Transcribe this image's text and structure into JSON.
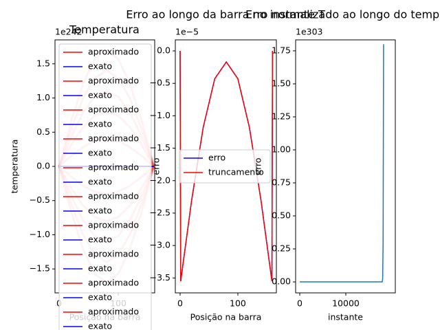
{
  "chart_data": [
    {
      "type": "line",
      "title": "Temperatura",
      "ylabel": "temperatura",
      "xlabel": "Posição na barra",
      "offset_text": "1e242",
      "x": [
        0,
        20,
        40,
        60,
        80,
        100,
        120,
        140,
        160
      ],
      "xlim": [
        -7,
        161.6
      ],
      "xticks": [
        0,
        100
      ],
      "ylim": [
        -1.85,
        1.85
      ],
      "yticks": [
        {
          "value": -1.5,
          "label": "−1.5"
        },
        {
          "value": -1.0,
          "label": "−1.0"
        },
        {
          "value": -0.5,
          "label": "−0.5"
        },
        {
          "value": 0,
          "label": "0.0"
        },
        0.5,
        {
          "value": 1.0,
          "label": "1.0"
        },
        1.5
      ],
      "legend": "upper left",
      "series": [
        {
          "name": "aproximado",
          "color": "#ff0000",
          "values": [
            0,
            0.65,
            1.2,
            1.57,
            1.7,
            1.57,
            1.2,
            0.65,
            0
          ]
        },
        {
          "name": "exato",
          "color": "#0000ff",
          "values": [
            0,
            0,
            0,
            0,
            0,
            0,
            0,
            0,
            0
          ]
        },
        {
          "name": "aproximado",
          "color": "#ff0000",
          "values": [
            0,
            -0.65,
            -1.2,
            -1.57,
            -1.7,
            -1.57,
            -1.2,
            -0.65,
            0
          ]
        },
        {
          "name": "exato",
          "color": "#0000ff",
          "values": [
            0,
            0,
            0,
            0,
            0,
            0,
            0,
            0,
            0
          ]
        },
        {
          "name": "aproximado",
          "color": "#ff0000",
          "values": [
            0,
            0.54,
            0.99,
            1.29,
            1.4,
            1.29,
            0.99,
            0.54,
            0
          ]
        },
        {
          "name": "exato",
          "color": "#0000ff",
          "values": [
            0,
            0,
            0,
            0,
            0,
            0,
            0,
            0,
            0
          ]
        },
        {
          "name": "aproximado",
          "color": "#ff0000",
          "values": [
            0,
            -0.54,
            -0.99,
            -1.29,
            -1.4,
            -1.29,
            -0.99,
            -0.54,
            0
          ]
        },
        {
          "name": "exato",
          "color": "#0000ff",
          "values": [
            0,
            0,
            0,
            0,
            0,
            0,
            0,
            0,
            0
          ]
        },
        {
          "name": "aproximado",
          "color": "#ff0000",
          "values": [
            0,
            0.42,
            0.78,
            1.02,
            1.1,
            1.02,
            0.78,
            0.42,
            0
          ]
        },
        {
          "name": "exato",
          "color": "#0000ff",
          "values": [
            0,
            0,
            0,
            0,
            0,
            0,
            0,
            0,
            0
          ]
        },
        {
          "name": "aproximado",
          "color": "#ff0000",
          "values": [
            0,
            -0.42,
            -0.78,
            -1.02,
            -1.1,
            -1.02,
            -0.78,
            -0.42,
            0
          ]
        },
        {
          "name": "exato",
          "color": "#0000ff",
          "values": [
            0,
            0,
            0,
            0,
            0,
            0,
            0,
            0,
            0
          ]
        },
        {
          "name": "aproximado",
          "color": "#ff0000",
          "values": [
            0,
            0.31,
            0.57,
            0.74,
            0.8,
            0.74,
            0.57,
            0.31,
            0
          ]
        },
        {
          "name": "exato",
          "color": "#0000ff",
          "values": [
            0,
            0,
            0,
            0,
            0,
            0,
            0,
            0,
            0
          ]
        },
        {
          "name": "aproximado",
          "color": "#ff0000",
          "values": [
            0,
            -0.31,
            -0.57,
            -0.74,
            -0.8,
            -0.74,
            -0.57,
            -0.31,
            0
          ]
        },
        {
          "name": "exato",
          "color": "#0000ff",
          "values": [
            0,
            0,
            0,
            0,
            0,
            0,
            0,
            0,
            0
          ]
        },
        {
          "name": "aproximado",
          "color": "#ff0000",
          "values": [
            0,
            0.15,
            0.28,
            0.37,
            0.4,
            0.37,
            0.28,
            0.15,
            0
          ]
        },
        {
          "name": "exato",
          "color": "#0000ff",
          "values": [
            0,
            0,
            0,
            0,
            0,
            0,
            0,
            0,
            0
          ]
        },
        {
          "name": "aproximado",
          "color": "#ff0000",
          "values": [
            0,
            -0.15,
            -0.28,
            -0.37,
            -0.4,
            -0.37,
            -0.28,
            -0.15,
            0
          ]
        },
        {
          "name": "exato",
          "color": "#0000ff",
          "values": [
            0,
            0,
            0,
            0,
            0,
            0,
            0,
            0,
            0
          ]
        }
      ]
    },
    {
      "type": "line",
      "title": "Erro ao longo da barra no instante T",
      "ylabel": "erro",
      "xlabel": "Posição na barra",
      "offset_text": "1e−5",
      "x": [
        0,
        1,
        20,
        40,
        60,
        80,
        100,
        120,
        140,
        159,
        160
      ],
      "xlim": [
        -8.3,
        166.7
      ],
      "xticks": [
        0,
        100
      ],
      "ylim": [
        -3.73,
        0.17
      ],
      "yticks": [
        {
          "value": -3.5,
          "label": "−3.5"
        },
        {
          "value": -3.0,
          "label": "−3.0"
        },
        {
          "value": -2.5,
          "label": "−2.5"
        },
        {
          "value": -2.0,
          "label": "−2.0"
        },
        {
          "value": -1.5,
          "label": "−1.5"
        },
        {
          "value": -1.0,
          "label": "−1.0"
        },
        {
          "value": -0.5,
          "label": "−0.5"
        },
        {
          "value": 0,
          "label": "0.0"
        }
      ],
      "legend": "center left",
      "series": [
        {
          "name": "erro",
          "color": "#0000ff",
          "values": [
            0,
            -3.55,
            -2.3,
            -1.18,
            -0.43,
            -0.17,
            -0.43,
            -1.18,
            -2.3,
            -3.55,
            0
          ]
        },
        {
          "name": "truncamento",
          "color": "#ff0000",
          "values": [
            0,
            -3.55,
            -2.3,
            -1.18,
            -0.43,
            -0.17,
            -0.43,
            -1.18,
            -2.3,
            -3.55,
            0
          ]
        }
      ]
    },
    {
      "type": "line",
      "title": "Erro normalizado ao longo do tempo",
      "ylabel": "erro",
      "xlabel": "instante",
      "offset_text": "1e303",
      "x": [
        0,
        17900,
        18000,
        18100,
        18200
      ],
      "xlim": [
        -900,
        20750
      ],
      "xticks": [
        0,
        10000
      ],
      "ylim": [
        -0.083,
        1.833
      ],
      "yticks": [
        {
          "value": 0,
          "label": "0.00"
        },
        {
          "value": 0.25,
          "label": "0.25"
        },
        {
          "value": 0.5,
          "label": "0.50"
        },
        {
          "value": 0.75,
          "label": "0.75"
        },
        {
          "value": 1.0,
          "label": "1.00"
        },
        {
          "value": 1.25,
          "label": "1.25"
        },
        {
          "value": 1.5,
          "label": "1.50"
        },
        {
          "value": 1.75,
          "label": "1.75"
        }
      ],
      "series": [
        {
          "color": "#1f77b4",
          "values": [
            0,
            0,
            0.02,
            0.3,
            1.8
          ]
        }
      ]
    }
  ]
}
